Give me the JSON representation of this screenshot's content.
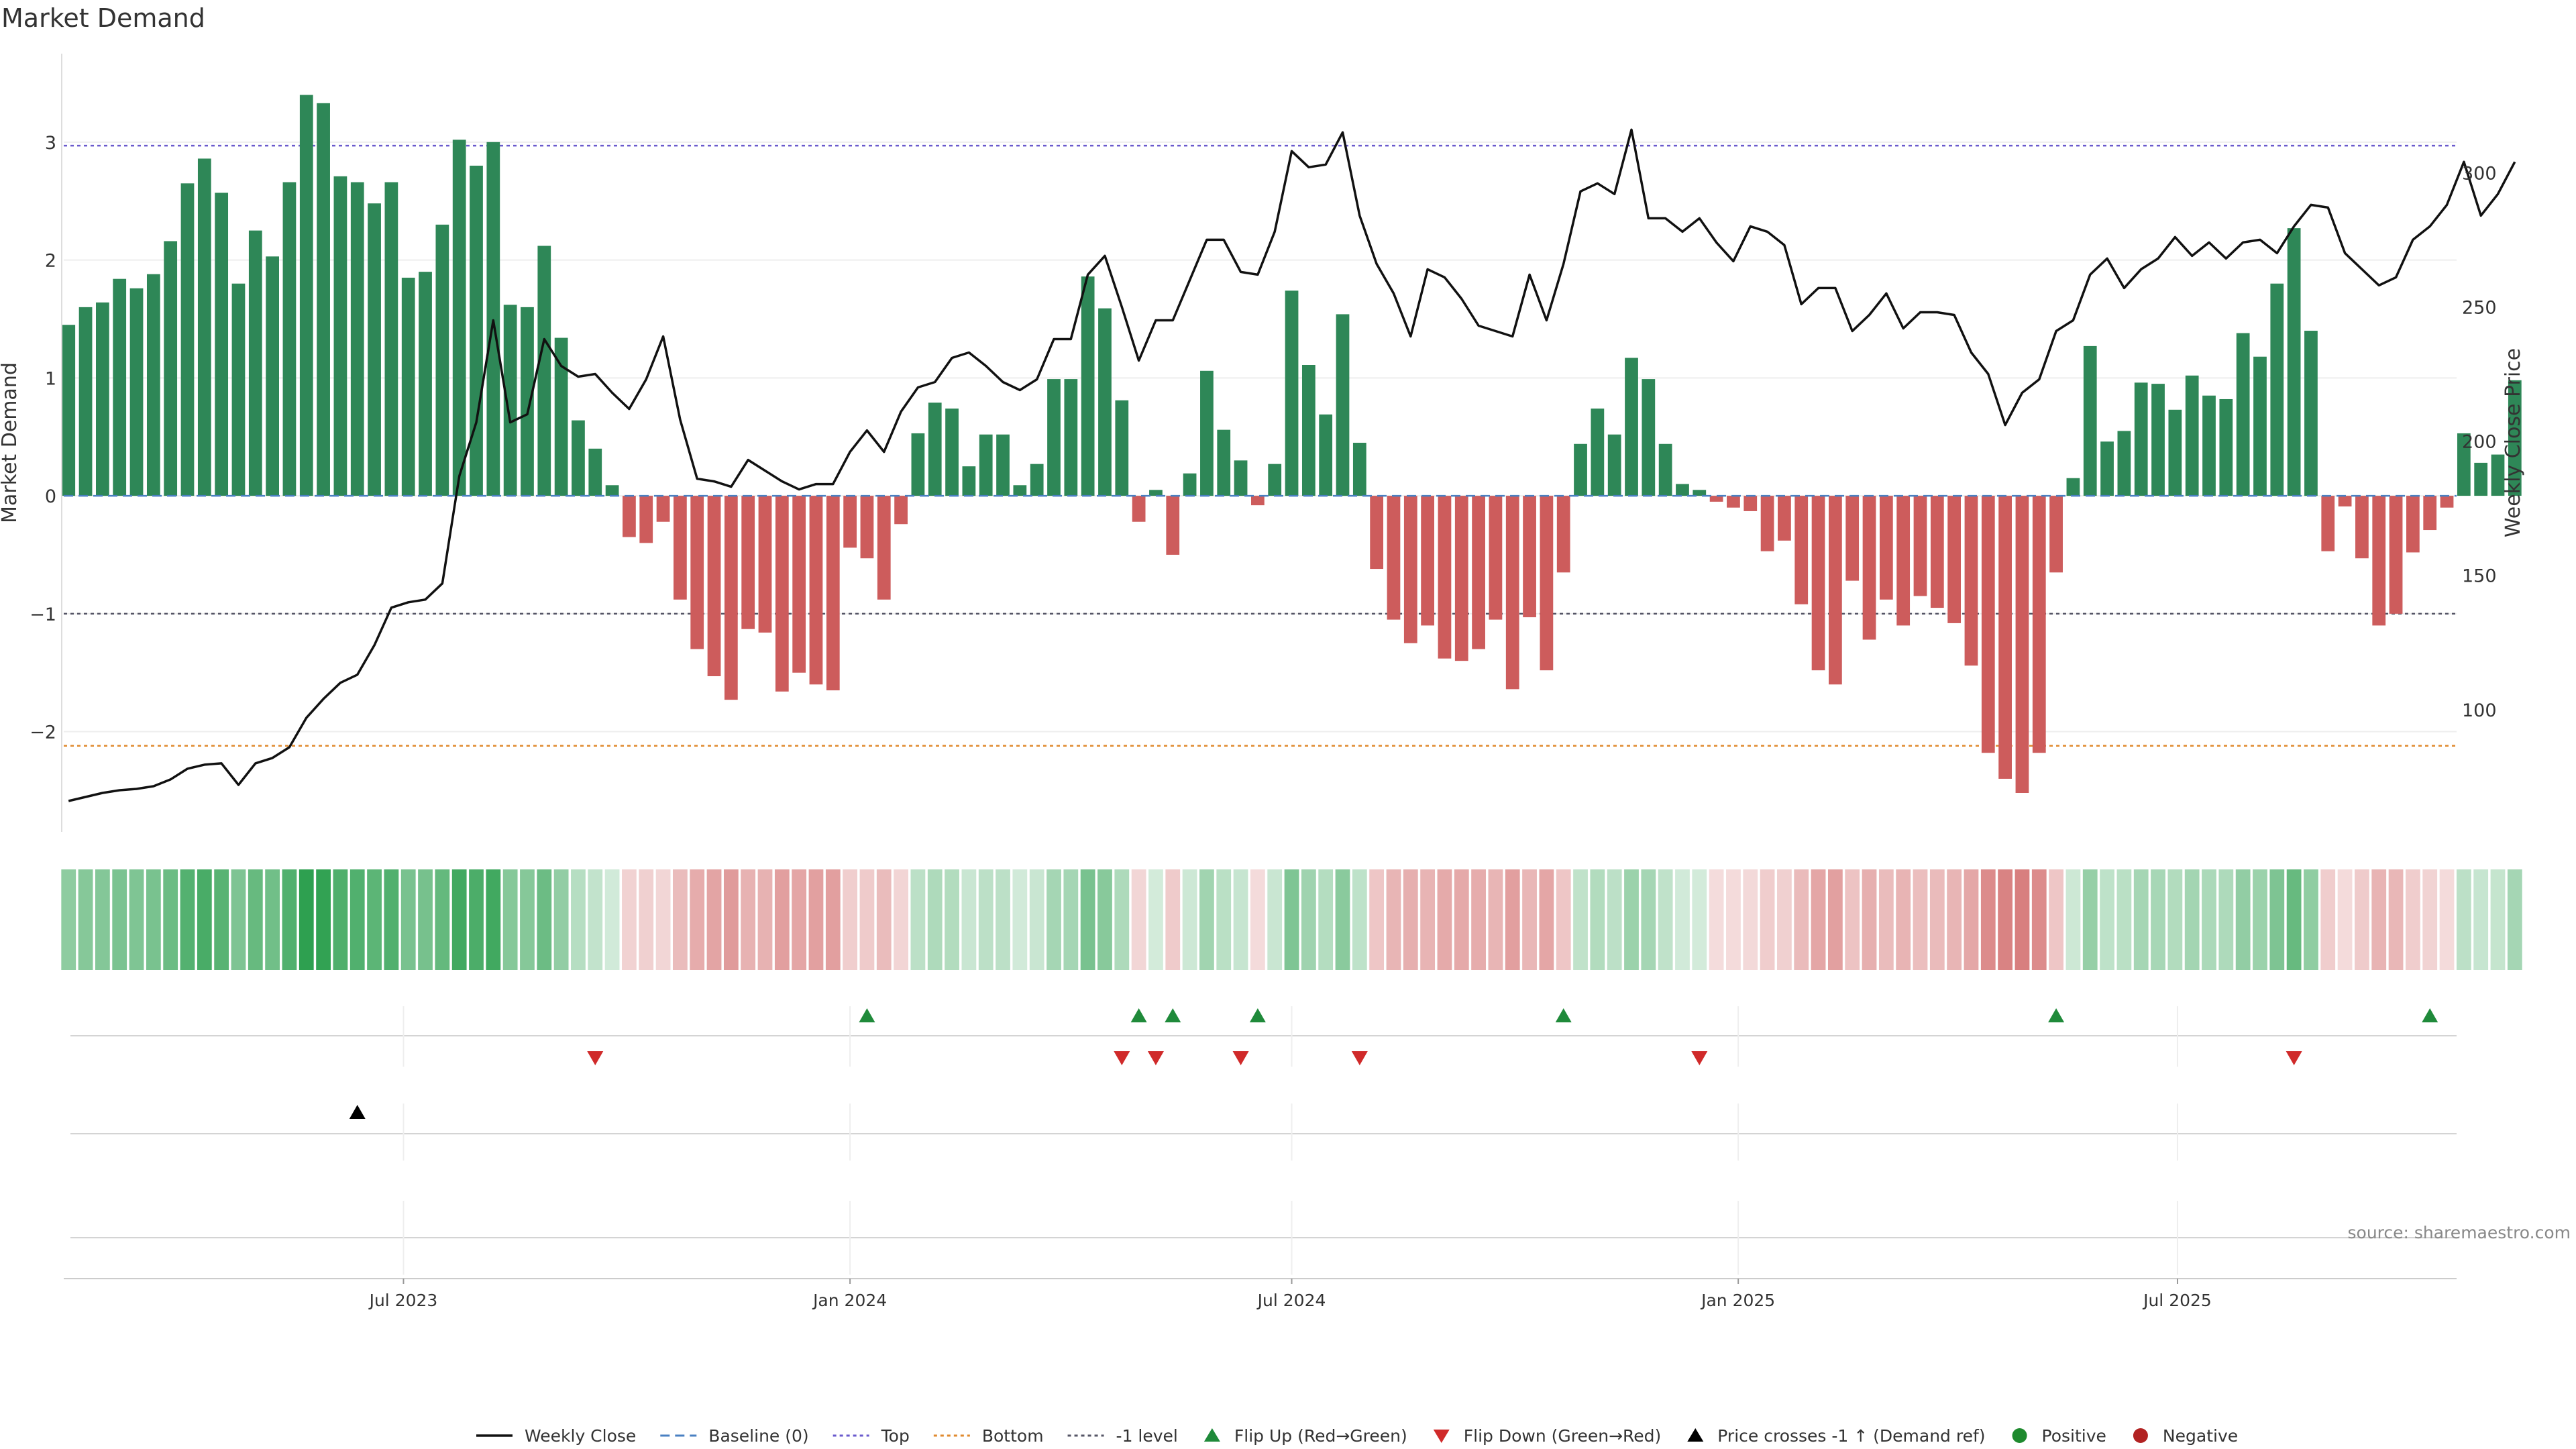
{
  "chart_data": {
    "type": "bar",
    "title": "Market Demand",
    "ylabel": "Market Demand",
    "y2label": "Weekly Close Price",
    "ylim": [
      -2.85,
      3.75
    ],
    "y2lim": [
      54.5,
      344.3
    ],
    "yticks": [
      -2,
      -1,
      0,
      1,
      2,
      3
    ],
    "ytick_labels": [
      "−2",
      "−1",
      "0",
      "1",
      "2",
      "3"
    ],
    "y2ticks": [
      100,
      150,
      200,
      250,
      300
    ],
    "x_start": "2023-02-11",
    "x_end": "2025-10-24",
    "first_bar": "2023-02-13",
    "xticks": [
      "2023-07-01",
      "2024-01-01",
      "2024-07-01",
      "2025-01-01",
      "2025-07-01"
    ],
    "xtick_labels": [
      "Jul 2023",
      "Jan 2024",
      "Jul 2024",
      "Jan 2025",
      "Jul 2025"
    ],
    "grid": "horizontal",
    "legend_position": "bottom-center",
    "colors": {
      "positive": "#2e8757",
      "negative": "#cd5c5c",
      "price": "#111111",
      "top_line": "#6a5acd",
      "bottom_line": "#e08a2e",
      "minus_one_line": "#555566",
      "baseline": "#4a80c2",
      "flip_up": "#1f8a3a",
      "flip_down": "#d02a2a",
      "cross": "#000000",
      "positive_dot": "#1e8a2e",
      "negative_dot": "#b22222"
    },
    "reference_lines": {
      "baseline": 0,
      "top": 2.97,
      "bottom": -2.12,
      "minus_one": -1
    },
    "demand": [
      1.45,
      1.6,
      1.64,
      1.84,
      1.76,
      1.88,
      2.16,
      2.65,
      2.86,
      2.57,
      1.8,
      2.25,
      2.03,
      2.66,
      3.4,
      3.33,
      2.71,
      2.66,
      2.48,
      2.66,
      1.85,
      1.9,
      2.3,
      3.02,
      2.8,
      3.0,
      1.62,
      1.6,
      2.12,
      1.34,
      0.64,
      0.4,
      0.09,
      -0.35,
      -0.4,
      -0.22,
      -0.88,
      -1.3,
      -1.53,
      -1.73,
      -1.13,
      -1.16,
      -1.66,
      -1.5,
      -1.6,
      -1.65,
      -0.44,
      -0.53,
      -0.88,
      -0.24,
      0.53,
      0.79,
      0.74,
      0.25,
      0.52,
      0.52,
      0.09,
      0.27,
      0.99,
      0.99,
      1.86,
      1.59,
      0.81,
      -0.22,
      0.05,
      -0.5,
      0.19,
      1.06,
      0.56,
      0.3,
      -0.08,
      0.27,
      1.74,
      1.11,
      0.69,
      1.54,
      0.45,
      -0.62,
      -1.05,
      -1.25,
      -1.1,
      -1.38,
      -1.4,
      -1.3,
      -1.05,
      -1.64,
      -1.03,
      -1.48,
      -0.65,
      0.44,
      0.74,
      0.52,
      1.17,
      0.99,
      0.44,
      0.1,
      0.05,
      -0.05,
      -0.1,
      -0.13,
      -0.47,
      -0.38,
      -0.92,
      -1.48,
      -1.6,
      -0.72,
      -1.22,
      -0.88,
      -1.1,
      -0.85,
      -0.95,
      -1.08,
      -1.44,
      -2.18,
      -2.4,
      -2.52,
      -2.18,
      -0.65,
      0.15,
      1.27,
      0.46,
      0.55,
      0.96,
      0.95,
      0.73,
      1.02,
      0.85,
      0.82,
      1.38,
      1.18,
      1.8,
      2.27,
      1.4,
      -0.47,
      -0.09,
      -0.53,
      -1.1,
      -1.0,
      -0.48,
      -0.29,
      -0.1,
      0.53,
      0.28,
      0.35,
      0.98
    ],
    "price": [
      66,
      67.5,
      69,
      70,
      70.5,
      71.5,
      74,
      78,
      79.5,
      80,
      72,
      80,
      82,
      86,
      97,
      104,
      110,
      113,
      124,
      138,
      140,
      141,
      147,
      187,
      207,
      245,
      207,
      210,
      238,
      228,
      224,
      225,
      218,
      212,
      223,
      239,
      208,
      186,
      185,
      183,
      193,
      189,
      185,
      182,
      184,
      184,
      196,
      204,
      196,
      211,
      220,
      222,
      231,
      233,
      228,
      222,
      219,
      223,
      238,
      238,
      262,
      269,
      250,
      230,
      245,
      245,
      260,
      275,
      275,
      263,
      262,
      278,
      308,
      302,
      303,
      315,
      284,
      266,
      255,
      239,
      264,
      261,
      253,
      243,
      241,
      239,
      262,
      245,
      266,
      293,
      296,
      292,
      316,
      283,
      283,
      278,
      283,
      274,
      267,
      280,
      278,
      273,
      251,
      257,
      257,
      241,
      247,
      255,
      242,
      248,
      248,
      247,
      233,
      225,
      206,
      218,
      223,
      241,
      245,
      262,
      268,
      257,
      264,
      268,
      276,
      269,
      274,
      268,
      274,
      275,
      270,
      280,
      288,
      287,
      270,
      264,
      258,
      261,
      275,
      280,
      288,
      304,
      284,
      292,
      304
    ],
    "flip_up": [
      "2024-01-08",
      "2024-04-29",
      "2024-05-13",
      "2024-06-17",
      "2024-10-21",
      "2025-05-12",
      "2025-10-13"
    ],
    "flip_down": [
      "2023-09-18",
      "2024-04-22",
      "2024-05-06",
      "2024-06-10",
      "2024-07-29",
      "2024-12-16",
      "2025-08-18"
    ],
    "price_cross": [
      "2023-06-12"
    ],
    "legend": [
      {
        "label": "Weekly Close",
        "kind": "line"
      },
      {
        "label": "Baseline (0)",
        "kind": "dash"
      },
      {
        "label": "Top",
        "kind": "dot"
      },
      {
        "label": "Bottom",
        "kind": "dot"
      },
      {
        "label": "-1 level",
        "kind": "dot"
      },
      {
        "label": "Flip Up (Red→Green)",
        "kind": "tri-up"
      },
      {
        "label": "Flip Down (Green→Red)",
        "kind": "tri-down"
      },
      {
        "label": "Price crosses -1 ↑ (Demand ref)",
        "kind": "tri-black"
      },
      {
        "label": "Positive",
        "kind": "dot-green"
      },
      {
        "label": "Negative",
        "kind": "dot-red"
      }
    ],
    "source": "source: sharemaestro.com"
  }
}
